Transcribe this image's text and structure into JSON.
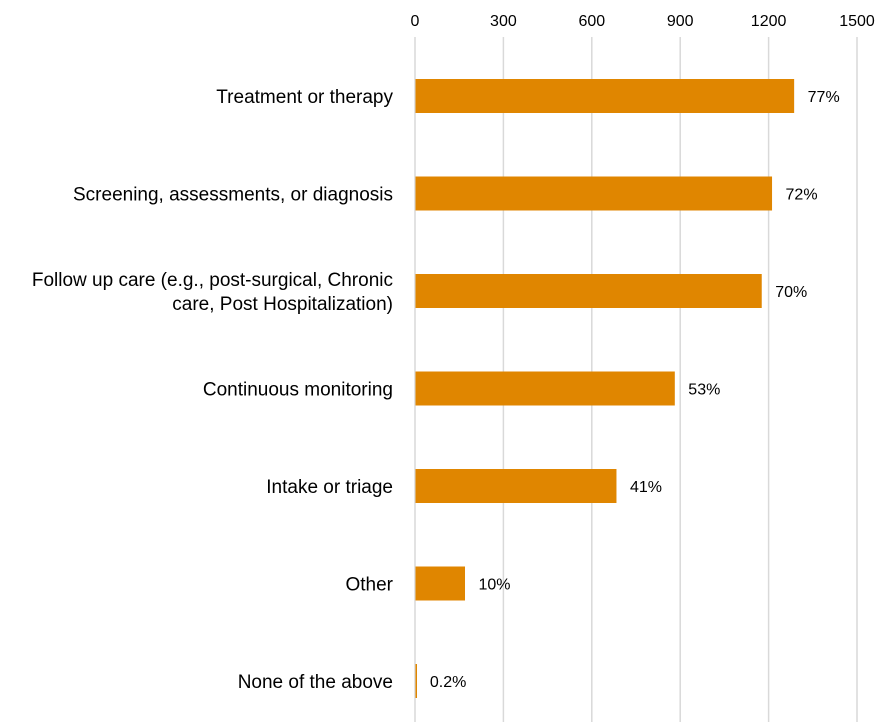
{
  "chart_data": {
    "type": "bar",
    "orientation": "horizontal",
    "title": "",
    "xlabel": "",
    "ylabel": "",
    "xlim": [
      0,
      1500
    ],
    "x_ticks": [
      "0",
      "300",
      "600",
      "900",
      "1200",
      "1500"
    ],
    "x_axis_position": "top",
    "grid": true,
    "bar_color": "#e08600",
    "categories": [
      [
        "Treatment or therapy"
      ],
      [
        "Screening, assessments, or diagnosis"
      ],
      [
        "Follow up care (e.g., post-surgical, Chronic",
        "care, Post Hospitalization)"
      ],
      [
        "Continuous monitoring"
      ],
      [
        "Intake or triage"
      ],
      [
        "Other"
      ],
      [
        "None of the above"
      ]
    ],
    "values": [
      1285,
      1210,
      1175,
      880,
      682,
      168,
      3
    ],
    "data_labels": [
      "77%",
      "72%",
      "70%",
      "53%",
      "41%",
      "10%",
      "0.2%"
    ]
  }
}
